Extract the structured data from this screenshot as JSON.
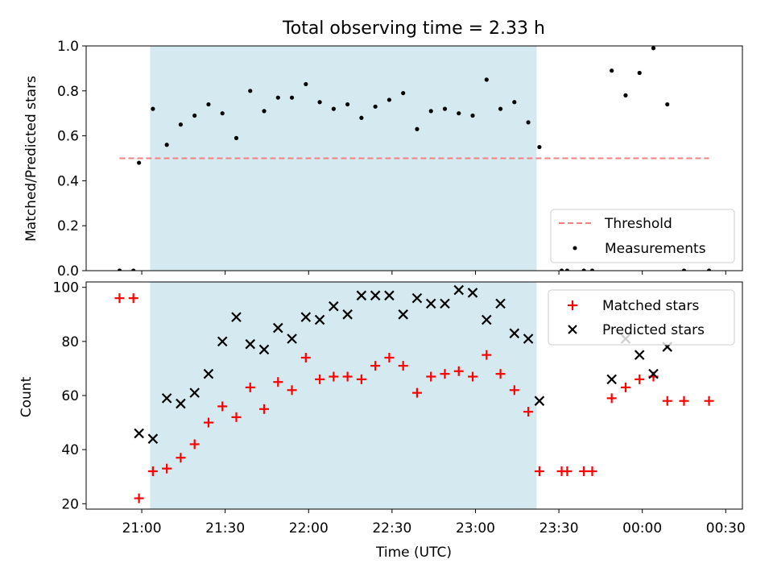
{
  "chart_data": [
    {
      "type": "scatter",
      "title": "Total observing time = 2.33 h",
      "xlabel": "",
      "ylabel": "Matched/Predicted stars",
      "ylim": [
        0,
        1.0
      ],
      "yticks": [
        "0.0",
        "0.2",
        "0.4",
        "0.6",
        "0.8",
        "1.0"
      ],
      "yticks_values": [
        0,
        0.2,
        0.4,
        0.6,
        0.8,
        1.0
      ],
      "xlim": [
        "20:40",
        "00:36"
      ],
      "shaded_interval": [
        "21:03",
        "23:22"
      ],
      "shade_color": "#d4eaf0",
      "threshold": {
        "name": "Threshold",
        "y": 0.5,
        "x_range": [
          "20:52",
          "00:24"
        ],
        "color": "#f48080",
        "style": "dashed"
      },
      "series": [
        {
          "name": "Measurements",
          "marker": "dot",
          "color": "#000000",
          "points": [
            [
              "20:52",
              0.0
            ],
            [
              "20:57",
              0.0
            ],
            [
              "20:59",
              0.48
            ],
            [
              "21:04",
              0.72
            ],
            [
              "21:09",
              0.56
            ],
            [
              "21:14",
              0.65
            ],
            [
              "21:19",
              0.69
            ],
            [
              "21:24",
              0.74
            ],
            [
              "21:29",
              0.7
            ],
            [
              "21:34",
              0.59
            ],
            [
              "21:39",
              0.8
            ],
            [
              "21:44",
              0.71
            ],
            [
              "21:49",
              0.77
            ],
            [
              "21:54",
              0.77
            ],
            [
              "21:59",
              0.83
            ],
            [
              "22:04",
              0.75
            ],
            [
              "22:09",
              0.72
            ],
            [
              "22:14",
              0.74
            ],
            [
              "22:19",
              0.68
            ],
            [
              "22:24",
              0.73
            ],
            [
              "22:29",
              0.76
            ],
            [
              "22:34",
              0.79
            ],
            [
              "22:39",
              0.63
            ],
            [
              "22:44",
              0.71
            ],
            [
              "22:49",
              0.72
            ],
            [
              "22:54",
              0.7
            ],
            [
              "22:59",
              0.69
            ],
            [
              "23:04",
              0.85
            ],
            [
              "23:09",
              0.72
            ],
            [
              "23:14",
              0.75
            ],
            [
              "23:19",
              0.66
            ],
            [
              "23:23",
              0.55
            ],
            [
              "23:31",
              0.0
            ],
            [
              "23:33",
              0.0
            ],
            [
              "23:39",
              0.0
            ],
            [
              "23:42",
              0.0
            ],
            [
              "23:49",
              0.89
            ],
            [
              "23:54",
              0.78
            ],
            [
              "23:59",
              0.88
            ],
            [
              "00:04",
              0.99
            ],
            [
              "00:09",
              0.74
            ],
            [
              "00:15",
              0.0
            ],
            [
              "00:24",
              0.0
            ]
          ]
        }
      ],
      "legend": {
        "placement": "lower-right",
        "entries": [
          "Threshold",
          "Measurements"
        ]
      }
    },
    {
      "type": "scatter",
      "title": "",
      "xlabel": "Time (UTC)",
      "ylabel": "Count",
      "ylim": [
        18,
        102
      ],
      "yticks": [
        "20",
        "40",
        "60",
        "80",
        "100"
      ],
      "yticks_values": [
        20,
        40,
        60,
        80,
        100
      ],
      "xlim": [
        "20:40",
        "00:36"
      ],
      "xticks": [
        "21:00",
        "21:30",
        "22:00",
        "22:30",
        "23:00",
        "23:30",
        "00:00",
        "00:30"
      ],
      "shaded_interval": [
        "21:03",
        "23:22"
      ],
      "shade_color": "#d4eaf0",
      "series": [
        {
          "name": "Matched stars",
          "marker": "plus",
          "color": "#ff0000",
          "points": [
            [
              "20:52",
              96
            ],
            [
              "20:57",
              96
            ],
            [
              "20:59",
              22
            ],
            [
              "21:04",
              32
            ],
            [
              "21:09",
              33
            ],
            [
              "21:14",
              37
            ],
            [
              "21:19",
              42
            ],
            [
              "21:24",
              50
            ],
            [
              "21:29",
              56
            ],
            [
              "21:34",
              52
            ],
            [
              "21:39",
              63
            ],
            [
              "21:44",
              55
            ],
            [
              "21:49",
              65
            ],
            [
              "21:54",
              62
            ],
            [
              "21:59",
              74
            ],
            [
              "22:04",
              66
            ],
            [
              "22:09",
              67
            ],
            [
              "22:14",
              67
            ],
            [
              "22:19",
              66
            ],
            [
              "22:24",
              71
            ],
            [
              "22:29",
              74
            ],
            [
              "22:34",
              71
            ],
            [
              "22:39",
              61
            ],
            [
              "22:44",
              67
            ],
            [
              "22:49",
              68
            ],
            [
              "22:54",
              69
            ],
            [
              "22:59",
              67
            ],
            [
              "23:04",
              75
            ],
            [
              "23:09",
              68
            ],
            [
              "23:14",
              62
            ],
            [
              "23:19",
              54
            ],
            [
              "23:23",
              32
            ],
            [
              "23:31",
              32
            ],
            [
              "23:33",
              32
            ],
            [
              "23:39",
              32
            ],
            [
              "23:42",
              32
            ],
            [
              "23:49",
              59
            ],
            [
              "23:54",
              63
            ],
            [
              "23:59",
              66
            ],
            [
              "00:04",
              67
            ],
            [
              "00:09",
              58
            ],
            [
              "00:15",
              58
            ],
            [
              "00:24",
              58
            ]
          ]
        },
        {
          "name": "Predicted stars",
          "marker": "x",
          "color": "#000000",
          "points": [
            [
              "20:59",
              46
            ],
            [
              "21:04",
              44
            ],
            [
              "21:09",
              59
            ],
            [
              "21:14",
              57
            ],
            [
              "21:19",
              61
            ],
            [
              "21:24",
              68
            ],
            [
              "21:29",
              80
            ],
            [
              "21:34",
              89
            ],
            [
              "21:39",
              79
            ],
            [
              "21:44",
              77
            ],
            [
              "21:49",
              85
            ],
            [
              "21:54",
              81
            ],
            [
              "21:59",
              89
            ],
            [
              "22:04",
              88
            ],
            [
              "22:09",
              93
            ],
            [
              "22:14",
              90
            ],
            [
              "22:19",
              97
            ],
            [
              "22:24",
              97
            ],
            [
              "22:29",
              97
            ],
            [
              "22:34",
              90
            ],
            [
              "22:39",
              96
            ],
            [
              "22:44",
              94
            ],
            [
              "22:49",
              94
            ],
            [
              "22:54",
              99
            ],
            [
              "22:59",
              98
            ],
            [
              "23:04",
              88
            ],
            [
              "23:09",
              94
            ],
            [
              "23:14",
              83
            ],
            [
              "23:19",
              81
            ],
            [
              "23:23",
              58
            ],
            [
              "23:49",
              66
            ],
            [
              "23:54",
              81
            ],
            [
              "23:59",
              75
            ],
            [
              "00:04",
              68
            ],
            [
              "00:09",
              78
            ]
          ]
        }
      ],
      "legend": {
        "placement": "upper-right",
        "entries": [
          "Matched stars",
          "Predicted stars"
        ]
      }
    }
  ]
}
